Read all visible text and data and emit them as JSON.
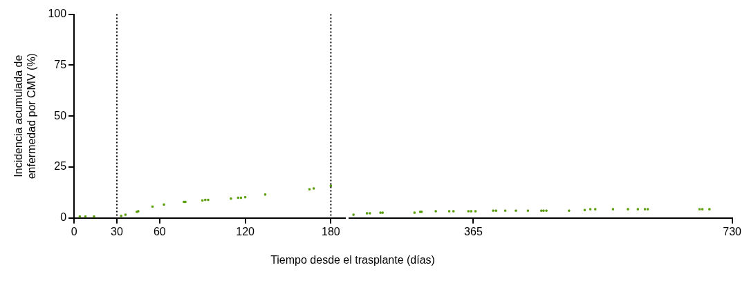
{
  "chart_data": [
    {
      "type": "scatter",
      "xlabel": "Tiempo desde el trasplante (días)",
      "ylabel": "Incidencia acumulada de\nenfermedad por CMV (%)",
      "series": [
        {
          "color": "#5a9e0a",
          "x": [
            4,
            8,
            14,
            33,
            36,
            44,
            45,
            55,
            63,
            77,
            78,
            90,
            92,
            94,
            110,
            115,
            117,
            120,
            134,
            165,
            168,
            180
          ],
          "values": [
            0.7,
            0.7,
            0.7,
            1,
            1.6,
            3,
            3.3,
            5.6,
            6.6,
            7.9,
            7.9,
            8.6,
            8.9,
            8.9,
            9.5,
            9.9,
            9.9,
            10.2,
            11.5,
            14.1,
            14.5,
            15.8
          ]
        }
      ],
      "xlim": [
        0,
        190
      ],
      "xticks": [
        0,
        30,
        60,
        120,
        180
      ],
      "ylim": [
        0,
        100
      ],
      "yticks": [
        0,
        25,
        50,
        75,
        100
      ],
      "ref_lines": [
        {
          "axis": "x",
          "value": 30,
          "line_style": "dotted",
          "color": "#000000"
        },
        {
          "axis": "x",
          "value": 180,
          "line_style": "dotted",
          "color": "#000000"
        }
      ],
      "grid": false,
      "marker": "square"
    },
    {
      "type": "scatter",
      "series": [
        {
          "color": "#5a9e0a",
          "x": [
            196,
            215,
            219,
            234,
            237,
            282,
            290,
            292,
            312,
            331,
            337,
            358,
            362,
            368,
            393,
            397,
            410,
            425,
            442,
            461,
            464,
            468,
            500,
            522,
            530,
            537,
            562,
            583,
            597,
            607,
            611,
            684,
            688,
            698
          ],
          "values": [
            1.6,
            2.3,
            2.3,
            2.6,
            2.6,
            2.6,
            3,
            3,
            3.3,
            3.3,
            3.3,
            3.3,
            3.3,
            3.3,
            3.6,
            3.6,
            3.6,
            3.6,
            3.6,
            3.6,
            3.6,
            3.6,
            3.6,
            3.9,
            4.3,
            4.3,
            4.3,
            4.3,
            4.3,
            4.3,
            4.3,
            4.3,
            4.3,
            4.3
          ]
        }
      ],
      "xlim": [
        190,
        730
      ],
      "xticks": [
        365,
        730
      ],
      "ylim": [
        0,
        100
      ],
      "tick_labels": "x",
      "grid": false,
      "marker": "square"
    }
  ]
}
